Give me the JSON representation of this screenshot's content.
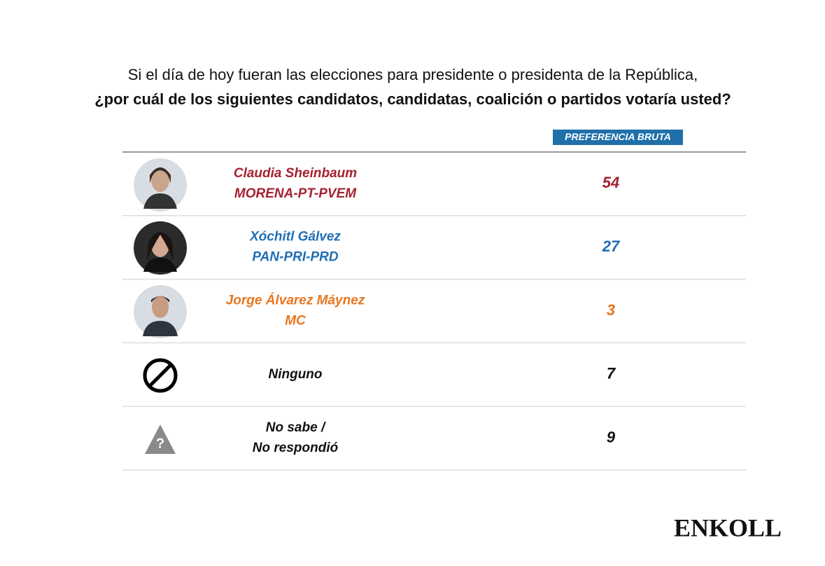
{
  "header": {
    "line1": "Si el día de hoy fueran las elecciones para presidente o presidenta de la República,",
    "line2": "¿por cuál de los siguientes candidatos, candidatas, coalición o partidos votaría usted?"
  },
  "table": {
    "column_header": "PREFERENCIA BRUTA",
    "rows": [
      {
        "lines": [
          "Claudia Sheinbaum",
          "MORENA-PT-PVEM"
        ],
        "value": 54,
        "color": "#a52231"
      },
      {
        "lines": [
          "Xóchitl Gálvez",
          "PAN-PRI-PRD"
        ],
        "value": 27,
        "color": "#1f6fb5"
      },
      {
        "lines": [
          "Jorge Álvarez Máynez",
          "MC"
        ],
        "value": 3,
        "color": "#e8761e"
      },
      {
        "lines": [
          "Ninguno"
        ],
        "value": 7,
        "color": "#111111"
      },
      {
        "lines": [
          "No sabe /",
          "No respondió"
        ],
        "value": 9,
        "color": "#111111"
      }
    ]
  },
  "brand": "ENKOLL"
}
